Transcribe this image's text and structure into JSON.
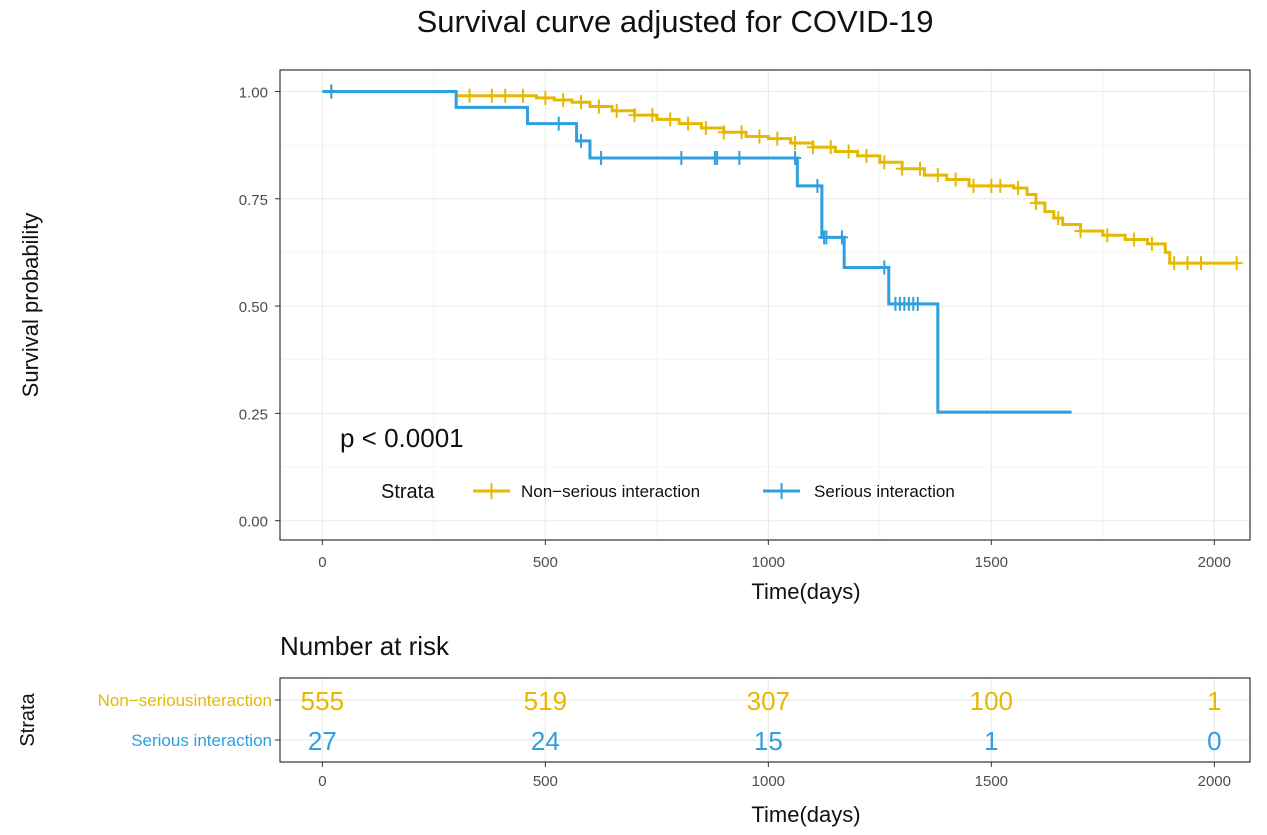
{
  "chart_data": {
    "type": "line",
    "title": "Survival curve adjusted for COVID-19",
    "xlabel": "Time(days)",
    "ylabel": "Survival probability",
    "xlim": [
      -95,
      2080
    ],
    "ylim": [
      -0.045,
      1.05
    ],
    "xticks": [
      0,
      500,
      1000,
      1500,
      2000
    ],
    "xtick_labels": [
      "0",
      "500",
      "1000",
      "1500",
      "2000"
    ],
    "yticks": [
      0,
      0.25,
      0.5,
      0.75,
      1.0
    ],
    "ytick_labels": [
      "0.00",
      "0.25",
      "0.50",
      "0.75",
      "1.00"
    ],
    "grid": true,
    "annotation": "p < 0.0001",
    "legend": {
      "title": "Strata",
      "placement": "inside-bottom",
      "labels": [
        "Non−serious interaction",
        "Serious interaction"
      ]
    },
    "series": [
      {
        "name": "Non−serious interaction",
        "color": "#E7B800",
        "x": [
          0,
          300,
          440,
          480,
          520,
          560,
          600,
          650,
          700,
          750,
          800,
          850,
          900,
          950,
          1000,
          1050,
          1100,
          1150,
          1200,
          1250,
          1300,
          1350,
          1400,
          1450,
          1500,
          1550,
          1580,
          1600,
          1620,
          1640,
          1660,
          1700,
          1750,
          1800,
          1850,
          1890,
          1900,
          1950,
          2000,
          2050
        ],
        "y": [
          1.0,
          0.99,
          0.99,
          0.985,
          0.98,
          0.975,
          0.965,
          0.955,
          0.945,
          0.935,
          0.925,
          0.915,
          0.905,
          0.895,
          0.89,
          0.88,
          0.87,
          0.86,
          0.85,
          0.835,
          0.82,
          0.805,
          0.795,
          0.78,
          0.78,
          0.775,
          0.76,
          0.74,
          0.72,
          0.705,
          0.69,
          0.675,
          0.665,
          0.655,
          0.645,
          0.625,
          0.6,
          0.6,
          0.6,
          0.6
        ],
        "censor_x": [
          20,
          330,
          380,
          410,
          450,
          500,
          540,
          580,
          620,
          660,
          700,
          740,
          780,
          820,
          860,
          900,
          940,
          980,
          1020,
          1060,
          1100,
          1140,
          1180,
          1220,
          1260,
          1300,
          1340,
          1380,
          1420,
          1460,
          1500,
          1520,
          1560,
          1600,
          1650,
          1700,
          1760,
          1820,
          1860,
          1910,
          1940,
          1970,
          2050
        ]
      },
      {
        "name": "Serious interaction",
        "color": "#2E9FDF",
        "x": [
          0,
          300,
          460,
          570,
          600,
          1065,
          1120,
          1170,
          1270,
          1380,
          1680
        ],
        "y": [
          1.0,
          0.963,
          0.925,
          0.885,
          0.845,
          0.78,
          0.66,
          0.59,
          0.505,
          0.253,
          0.253
        ],
        "censor_x": [
          20,
          530,
          580,
          625,
          805,
          880,
          885,
          935,
          1060,
          1110,
          1125,
          1130,
          1165,
          1260,
          1285,
          1295,
          1305,
          1315,
          1325,
          1335
        ]
      }
    ],
    "risk_table": {
      "title": "Number at risk",
      "strata_label": "Strata",
      "xlabel": "Time(days)",
      "times": [
        0,
        500,
        1000,
        1500,
        2000
      ],
      "rows": [
        {
          "label": "Non−seriousinteraction",
          "color": "#E7B800",
          "values": [
            "555",
            "519",
            "307",
            "100",
            "1"
          ]
        },
        {
          "label": "Serious interaction",
          "color": "#2E9FDF",
          "values": [
            "27",
            "24",
            "15",
            "1",
            "0"
          ]
        }
      ]
    }
  }
}
